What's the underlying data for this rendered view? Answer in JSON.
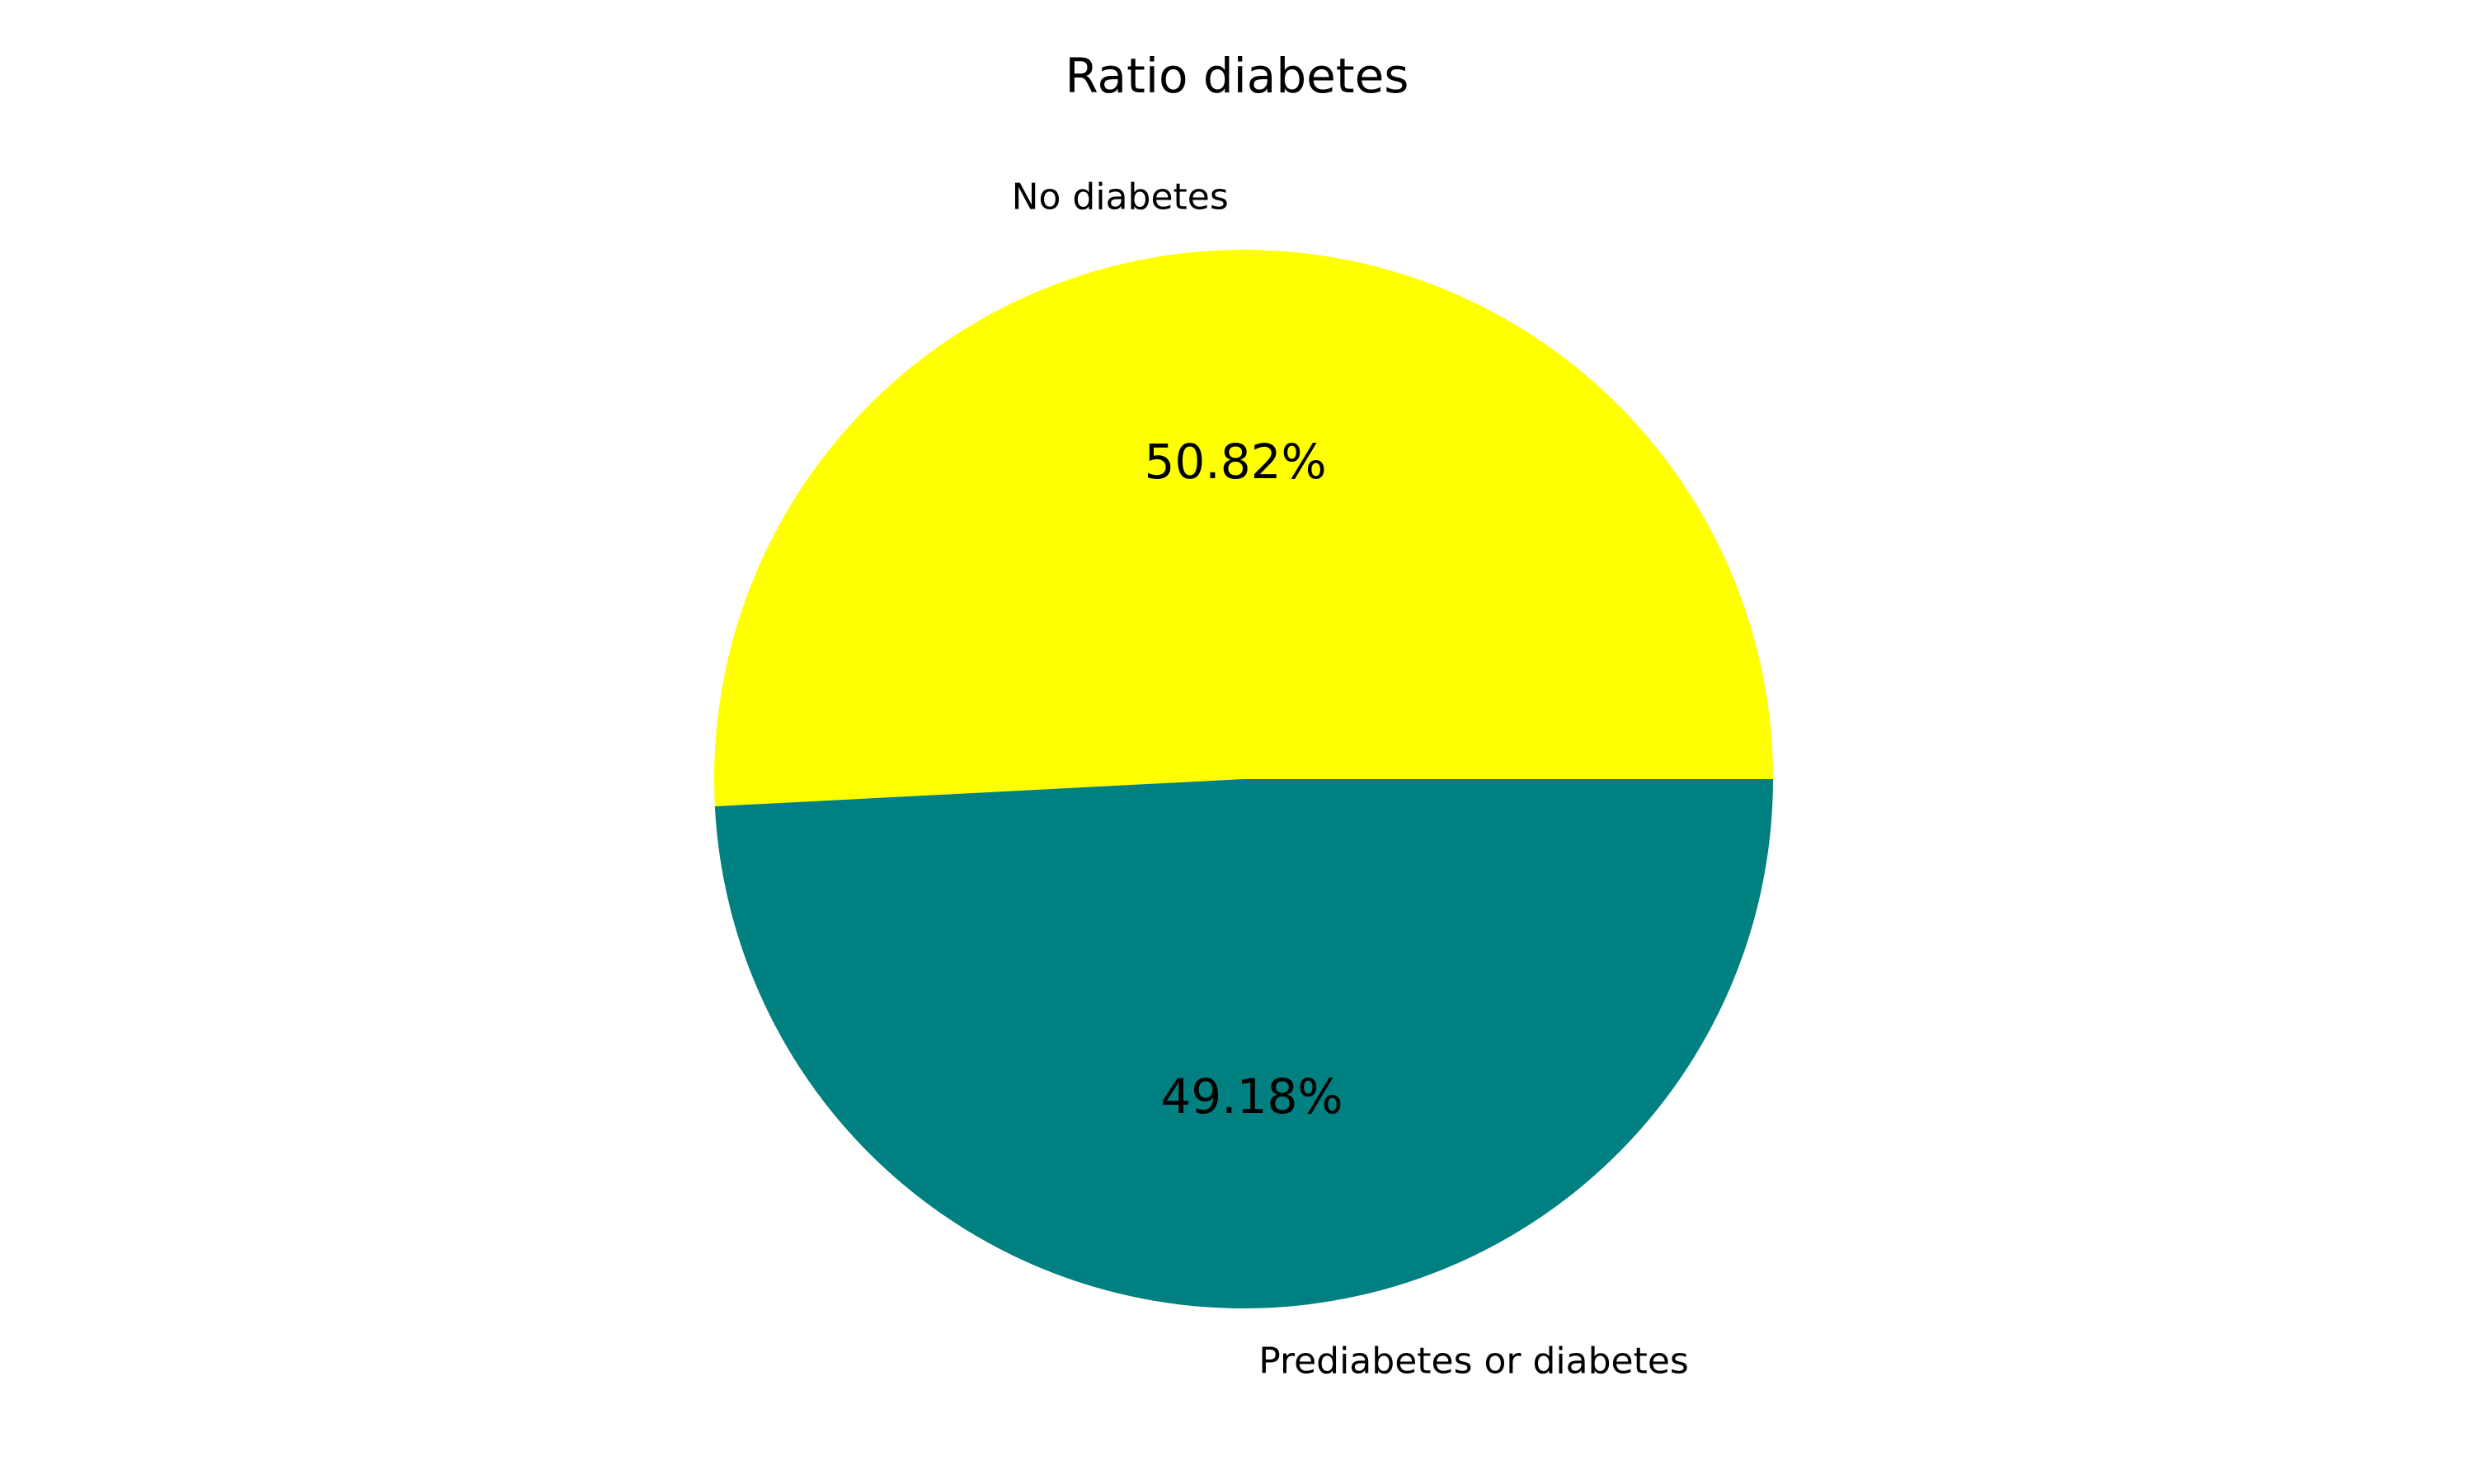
{
  "chart_data": {
    "type": "pie",
    "title": "Ratio diabetes",
    "slices": [
      {
        "label": "No diabetes",
        "value": 50.82,
        "pct_label": "50.82%",
        "color": "#ffff00"
      },
      {
        "label": "Prediabetes or diabetes",
        "value": 49.18,
        "pct_label": "49.18%",
        "color": "#008080"
      }
    ],
    "start_angle_deg": 0,
    "direction": "counterclockwise",
    "legend": "none"
  }
}
